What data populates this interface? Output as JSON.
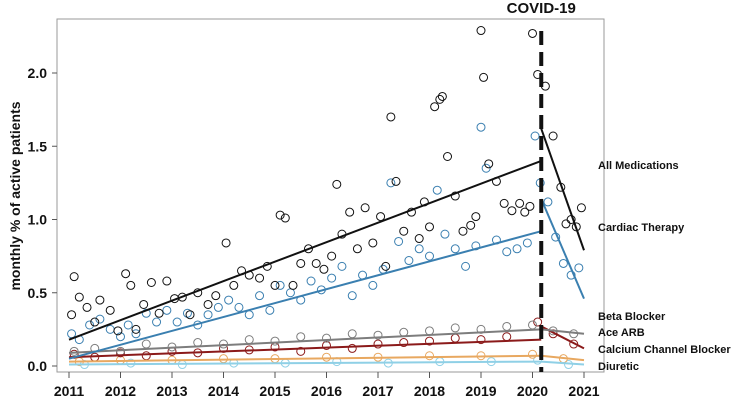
{
  "chart_data": {
    "type": "scatter",
    "title": "",
    "xlabel": "",
    "ylabel": "monthly % of active patients",
    "xlim": [
      2011,
      2021
    ],
    "ylim": [
      0,
      2.3
    ],
    "x_ticks": [
      "2011",
      "2012",
      "2013",
      "2014",
      "2015",
      "2016",
      "2017",
      "2018",
      "2019",
      "2020",
      "2021"
    ],
    "y_ticks": [
      "0.0",
      "0.5",
      "1.0",
      "1.5",
      "2.0"
    ],
    "covid_line": {
      "label": "COVID-19",
      "x": 2020.17
    },
    "series": [
      {
        "name": "All Medications",
        "color": "#111111",
        "trend_pre": [
          [
            2011,
            0.18
          ],
          [
            2020.17,
            1.4
          ]
        ],
        "trend_post": [
          [
            2020.17,
            1.62
          ],
          [
            2021,
            0.79
          ]
        ],
        "points": [
          [
            2011.05,
            0.35
          ],
          [
            2011.1,
            0.61
          ],
          [
            2011.2,
            0.47
          ],
          [
            2011.35,
            0.4
          ],
          [
            2011.5,
            0.3
          ],
          [
            2011.6,
            0.45
          ],
          [
            2011.8,
            0.38
          ],
          [
            2011.95,
            0.24
          ],
          [
            2012.1,
            0.63
          ],
          [
            2012.2,
            0.55
          ],
          [
            2012.3,
            0.25
          ],
          [
            2012.45,
            0.42
          ],
          [
            2012.6,
            0.57
          ],
          [
            2012.75,
            0.36
          ],
          [
            2012.9,
            0.58
          ],
          [
            2013.05,
            0.46
          ],
          [
            2013.2,
            0.47
          ],
          [
            2013.35,
            0.35
          ],
          [
            2013.5,
            0.5
          ],
          [
            2013.7,
            0.42
          ],
          [
            2013.85,
            0.48
          ],
          [
            2014.05,
            0.84
          ],
          [
            2014.2,
            0.55
          ],
          [
            2014.35,
            0.65
          ],
          [
            2014.5,
            0.62
          ],
          [
            2014.7,
            0.6
          ],
          [
            2014.85,
            0.68
          ],
          [
            2015.0,
            0.55
          ],
          [
            2015.1,
            1.03
          ],
          [
            2015.2,
            1.01
          ],
          [
            2015.35,
            0.55
          ],
          [
            2015.5,
            0.7
          ],
          [
            2015.65,
            0.8
          ],
          [
            2015.8,
            0.7
          ],
          [
            2015.95,
            0.66
          ],
          [
            2016.1,
            0.75
          ],
          [
            2016.2,
            1.24
          ],
          [
            2016.3,
            0.9
          ],
          [
            2016.45,
            1.05
          ],
          [
            2016.6,
            0.8
          ],
          [
            2016.75,
            1.08
          ],
          [
            2016.9,
            0.84
          ],
          [
            2017.05,
            1.02
          ],
          [
            2017.15,
            0.68
          ],
          [
            2017.25,
            1.7
          ],
          [
            2017.35,
            1.26
          ],
          [
            2017.5,
            0.92
          ],
          [
            2017.65,
            1.05
          ],
          [
            2017.8,
            0.87
          ],
          [
            2017.9,
            1.12
          ],
          [
            2018.0,
            0.95
          ],
          [
            2018.1,
            1.77
          ],
          [
            2018.2,
            1.82
          ],
          [
            2018.25,
            1.84
          ],
          [
            2018.35,
            1.43
          ],
          [
            2018.5,
            1.16
          ],
          [
            2018.65,
            0.92
          ],
          [
            2018.8,
            0.96
          ],
          [
            2018.9,
            1.02
          ],
          [
            2019.0,
            2.29
          ],
          [
            2019.05,
            1.97
          ],
          [
            2019.15,
            1.38
          ],
          [
            2019.3,
            1.26
          ],
          [
            2019.45,
            1.11
          ],
          [
            2019.6,
            1.06
          ],
          [
            2019.75,
            1.11
          ],
          [
            2019.85,
            1.05
          ],
          [
            2019.95,
            1.09
          ],
          [
            2020.0,
            2.27
          ],
          [
            2020.1,
            1.99
          ],
          [
            2020.25,
            1.91
          ],
          [
            2020.4,
            1.57
          ],
          [
            2020.55,
            1.22
          ],
          [
            2020.65,
            0.97
          ],
          [
            2020.75,
            1.0
          ],
          [
            2020.85,
            0.95
          ],
          [
            2020.95,
            1.08
          ]
        ]
      },
      {
        "name": "Cardiac Therapy",
        "color": "#3a7fb0",
        "trend_pre": [
          [
            2011,
            0.05
          ],
          [
            2020.17,
            0.92
          ]
        ],
        "trend_post": [
          [
            2020.17,
            1.14
          ],
          [
            2021,
            0.46
          ]
        ],
        "points": [
          [
            2011.05,
            0.22
          ],
          [
            2011.2,
            0.18
          ],
          [
            2011.4,
            0.28
          ],
          [
            2011.6,
            0.32
          ],
          [
            2011.8,
            0.25
          ],
          [
            2012.0,
            0.2
          ],
          [
            2012.15,
            0.28
          ],
          [
            2012.3,
            0.22
          ],
          [
            2012.5,
            0.36
          ],
          [
            2012.7,
            0.3
          ],
          [
            2012.9,
            0.38
          ],
          [
            2013.1,
            0.3
          ],
          [
            2013.3,
            0.36
          ],
          [
            2013.5,
            0.28
          ],
          [
            2013.7,
            0.35
          ],
          [
            2013.9,
            0.4
          ],
          [
            2014.1,
            0.45
          ],
          [
            2014.3,
            0.4
          ],
          [
            2014.5,
            0.35
          ],
          [
            2014.7,
            0.48
          ],
          [
            2014.9,
            0.38
          ],
          [
            2015.1,
            0.55
          ],
          [
            2015.3,
            0.5
          ],
          [
            2015.5,
            0.45
          ],
          [
            2015.7,
            0.58
          ],
          [
            2015.9,
            0.52
          ],
          [
            2016.1,
            0.6
          ],
          [
            2016.3,
            0.68
          ],
          [
            2016.5,
            0.48
          ],
          [
            2016.7,
            0.62
          ],
          [
            2016.9,
            0.55
          ],
          [
            2017.1,
            0.66
          ],
          [
            2017.25,
            1.25
          ],
          [
            2017.4,
            0.85
          ],
          [
            2017.6,
            0.72
          ],
          [
            2017.8,
            0.8
          ],
          [
            2018.0,
            0.75
          ],
          [
            2018.15,
            1.2
          ],
          [
            2018.3,
            0.9
          ],
          [
            2018.5,
            0.8
          ],
          [
            2018.7,
            0.68
          ],
          [
            2018.9,
            0.82
          ],
          [
            2019.0,
            1.63
          ],
          [
            2019.1,
            1.35
          ],
          [
            2019.3,
            0.86
          ],
          [
            2019.5,
            0.78
          ],
          [
            2019.7,
            0.8
          ],
          [
            2019.9,
            0.84
          ],
          [
            2020.05,
            1.57
          ],
          [
            2020.15,
            1.25
          ],
          [
            2020.3,
            1.12
          ],
          [
            2020.45,
            0.88
          ],
          [
            2020.6,
            0.7
          ],
          [
            2020.75,
            0.62
          ],
          [
            2020.9,
            0.67
          ]
        ]
      },
      {
        "name": "Beta Blocker",
        "color": "#7d7d7d",
        "trend_pre": [
          [
            2011,
            0.09
          ],
          [
            2020.17,
            0.25
          ]
        ],
        "trend_post": [
          [
            2020.17,
            0.25
          ],
          [
            2021,
            0.22
          ]
        ],
        "points": [
          [
            2011.1,
            0.1
          ],
          [
            2011.5,
            0.12
          ],
          [
            2012.0,
            0.1
          ],
          [
            2012.5,
            0.15
          ],
          [
            2013.0,
            0.13
          ],
          [
            2013.5,
            0.16
          ],
          [
            2014.0,
            0.15
          ],
          [
            2014.5,
            0.18
          ],
          [
            2015.0,
            0.17
          ],
          [
            2015.5,
            0.2
          ],
          [
            2016.0,
            0.19
          ],
          [
            2016.5,
            0.22
          ],
          [
            2017.0,
            0.21
          ],
          [
            2017.5,
            0.23
          ],
          [
            2018.0,
            0.24
          ],
          [
            2018.5,
            0.26
          ],
          [
            2019.0,
            0.25
          ],
          [
            2019.5,
            0.27
          ],
          [
            2020.0,
            0.28
          ],
          [
            2020.4,
            0.24
          ],
          [
            2020.8,
            0.22
          ]
        ]
      },
      {
        "name": "Ace ARB",
        "color": "#8b1a1a",
        "trend_pre": [
          [
            2011,
            0.06
          ],
          [
            2020.17,
            0.18
          ]
        ],
        "trend_post": [
          [
            2020.17,
            0.27
          ],
          [
            2021,
            0.12
          ]
        ],
        "points": [
          [
            2011.1,
            0.08
          ],
          [
            2011.5,
            0.06
          ],
          [
            2012.0,
            0.09
          ],
          [
            2012.5,
            0.07
          ],
          [
            2013.0,
            0.1
          ],
          [
            2013.5,
            0.09
          ],
          [
            2014.0,
            0.12
          ],
          [
            2014.5,
            0.11
          ],
          [
            2015.0,
            0.13
          ],
          [
            2015.5,
            0.1
          ],
          [
            2016.0,
            0.14
          ],
          [
            2016.5,
            0.12
          ],
          [
            2017.0,
            0.15
          ],
          [
            2017.5,
            0.16
          ],
          [
            2018.0,
            0.17
          ],
          [
            2018.5,
            0.19
          ],
          [
            2019.0,
            0.18
          ],
          [
            2019.5,
            0.2
          ],
          [
            2020.1,
            0.3
          ],
          [
            2020.4,
            0.22
          ],
          [
            2020.8,
            0.15
          ]
        ]
      },
      {
        "name": "Calcium Channel Blocker",
        "color": "#e8a860",
        "trend_pre": [
          [
            2011,
            0.03
          ],
          [
            2020.17,
            0.07
          ]
        ],
        "trend_post": [
          [
            2020.17,
            0.07
          ],
          [
            2021,
            0.04
          ]
        ],
        "points": [
          [
            2011.2,
            0.03
          ],
          [
            2012.0,
            0.04
          ],
          [
            2013.0,
            0.04
          ],
          [
            2014.0,
            0.05
          ],
          [
            2015.0,
            0.05
          ],
          [
            2016.0,
            0.06
          ],
          [
            2017.0,
            0.06
          ],
          [
            2018.0,
            0.07
          ],
          [
            2019.0,
            0.07
          ],
          [
            2020.0,
            0.08
          ],
          [
            2020.6,
            0.05
          ]
        ]
      },
      {
        "name": "Diuretic",
        "color": "#8fd0e6",
        "trend_pre": [
          [
            2011,
            0.01
          ],
          [
            2020.17,
            0.03
          ]
        ],
        "trend_post": [
          [
            2020.17,
            0.03
          ],
          [
            2021,
            0.01
          ]
        ],
        "points": [
          [
            2011.3,
            0.01
          ],
          [
            2012.2,
            0.02
          ],
          [
            2013.2,
            0.01
          ],
          [
            2014.2,
            0.02
          ],
          [
            2015.2,
            0.02
          ],
          [
            2016.2,
            0.03
          ],
          [
            2017.2,
            0.02
          ],
          [
            2018.2,
            0.03
          ],
          [
            2019.2,
            0.03
          ],
          [
            2020.1,
            0.04
          ],
          [
            2020.7,
            0.01
          ]
        ]
      }
    ]
  }
}
